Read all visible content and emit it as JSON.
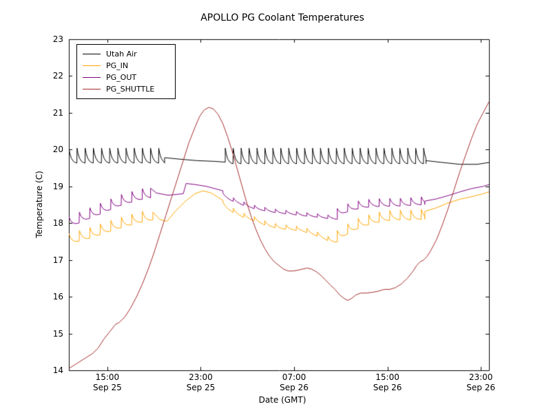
{
  "chart_data": {
    "type": "line",
    "title": "APOLLO PG Coolant Temperatures",
    "xlabel": "Date (GMT)",
    "ylabel": "Temperature (C)",
    "ylim": [
      14,
      23
    ],
    "x_hours_range": [
      0,
      36
    ],
    "grid": false,
    "legend_position": "upper left",
    "background_color": "#ffffff",
    "frame_color": "#000000",
    "yticks": [
      14,
      15,
      16,
      17,
      18,
      19,
      20,
      21,
      22,
      23
    ],
    "xticks": [
      {
        "t": 3.3,
        "time": "15:00",
        "date": "Sep 25"
      },
      {
        "t": 11.3,
        "time": "23:00",
        "date": "Sep 25"
      },
      {
        "t": 19.3,
        "time": "07:00",
        "date": "Sep 26"
      },
      {
        "t": 27.3,
        "time": "15:00",
        "date": "Sep 26"
      },
      {
        "t": 35.3,
        "time": "23:00",
        "date": "Sep 26"
      }
    ],
    "series": [
      {
        "name": "Utah Air",
        "color": "#000000",
        "segments": [
          {
            "kind": "saw",
            "amp": 0.42,
            "period": 0.7,
            "points": [
              [
                0,
                19.62
              ],
              [
                8.2,
                19.62
              ]
            ]
          },
          {
            "kind": "smooth",
            "points": [
              [
                8.2,
                19.78
              ],
              [
                9.5,
                19.74
              ],
              [
                11,
                19.7
              ],
              [
                12.5,
                19.68
              ],
              [
                13.4,
                19.66
              ]
            ]
          },
          {
            "kind": "saw",
            "amp": 0.44,
            "period": 0.68,
            "points": [
              [
                13.4,
                19.6
              ],
              [
                30.6,
                19.6
              ]
            ]
          },
          {
            "kind": "smooth",
            "points": [
              [
                30.6,
                19.7
              ],
              [
                32,
                19.65
              ],
              [
                33.5,
                19.6
              ],
              [
                35,
                19.6
              ],
              [
                36,
                19.65
              ]
            ]
          }
        ]
      },
      {
        "name": "PG_IN",
        "color": "#ffa500",
        "segments": [
          {
            "kind": "saw",
            "amp": 0.3,
            "period": 0.9,
            "points": [
              [
                0,
                17.42
              ],
              [
                2,
                17.6
              ],
              [
                4,
                17.82
              ],
              [
                6,
                18.0
              ],
              [
                7.2,
                18.08
              ]
            ]
          },
          {
            "kind": "smooth",
            "points": [
              [
                7.2,
                18.3
              ],
              [
                7.8,
                18.1
              ],
              [
                8.4,
                18.05
              ],
              [
                9.2,
                18.35
              ],
              [
                10,
                18.6
              ],
              [
                10.8,
                18.8
              ],
              [
                11.5,
                18.88
              ],
              [
                12.2,
                18.82
              ],
              [
                13.2,
                18.62
              ]
            ]
          },
          {
            "kind": "saw",
            "amp": 0.12,
            "period": 0.9,
            "points": [
              [
                13.2,
                18.45
              ],
              [
                14,
                18.3
              ],
              [
                15,
                18.15
              ],
              [
                16,
                18.05
              ],
              [
                17,
                17.92
              ],
              [
                18,
                17.85
              ],
              [
                19,
                17.82
              ],
              [
                20,
                17.78
              ],
              [
                21,
                17.68
              ],
              [
                21.8,
                17.58
              ],
              [
                22.5,
                17.48
              ],
              [
                23,
                17.48
              ]
            ]
          },
          {
            "kind": "saw",
            "amp": 0.28,
            "period": 0.9,
            "points": [
              [
                23,
                17.52
              ],
              [
                24,
                17.72
              ],
              [
                25,
                17.88
              ],
              [
                26,
                17.98
              ],
              [
                27,
                18.05
              ],
              [
                28,
                18.08
              ],
              [
                29.5,
                18.08
              ],
              [
                30.5,
                18.1
              ]
            ]
          },
          {
            "kind": "smooth",
            "points": [
              [
                30.5,
                18.32
              ],
              [
                31.5,
                18.42
              ],
              [
                32.5,
                18.55
              ],
              [
                33.5,
                18.65
              ],
              [
                34.5,
                18.72
              ],
              [
                35.5,
                18.8
              ],
              [
                36,
                18.85
              ]
            ]
          }
        ]
      },
      {
        "name": "PG_OUT",
        "color": "#800080",
        "segments": [
          {
            "kind": "saw",
            "amp": 0.3,
            "period": 0.9,
            "points": [
              [
                0,
                17.88
              ],
              [
                1.5,
                18.08
              ],
              [
                3,
                18.28
              ],
              [
                4.5,
                18.48
              ],
              [
                6,
                18.62
              ],
              [
                7,
                18.68
              ]
            ]
          },
          {
            "kind": "smooth",
            "points": [
              [
                7,
                18.95
              ],
              [
                7.5,
                18.82
              ],
              [
                8.5,
                18.76
              ],
              [
                9.8,
                18.8
              ],
              [
                10.05,
                19.08
              ],
              [
                10.8,
                19.05
              ],
              [
                11.8,
                19.0
              ],
              [
                13.2,
                18.88
              ]
            ]
          },
          {
            "kind": "saw",
            "amp": 0.1,
            "period": 0.9,
            "points": [
              [
                13.2,
                18.72
              ],
              [
                14,
                18.6
              ],
              [
                15,
                18.48
              ],
              [
                16,
                18.38
              ],
              [
                17,
                18.32
              ],
              [
                18,
                18.27
              ],
              [
                19,
                18.24
              ],
              [
                20,
                18.2
              ],
              [
                21,
                18.17
              ],
              [
                22,
                18.13
              ],
              [
                23,
                18.1
              ]
            ]
          },
          {
            "kind": "saw",
            "amp": 0.22,
            "period": 0.9,
            "points": [
              [
                23,
                18.18
              ],
              [
                24,
                18.32
              ],
              [
                25,
                18.4
              ],
              [
                26,
                18.44
              ],
              [
                27,
                18.45
              ],
              [
                28.5,
                18.46
              ],
              [
                30.5,
                18.5
              ]
            ]
          },
          {
            "kind": "smooth",
            "points": [
              [
                30.5,
                18.6
              ],
              [
                31.5,
                18.66
              ],
              [
                32.5,
                18.75
              ],
              [
                33.5,
                18.85
              ],
              [
                34.5,
                18.94
              ],
              [
                35.5,
                19.0
              ],
              [
                36,
                19.05
              ]
            ]
          }
        ]
      },
      {
        "name": "PG_SHUTTLE",
        "color": "#a52a2a",
        "segments": [
          {
            "kind": "smooth",
            "points": [
              [
                0,
                14.05
              ],
              [
                0.5,
                14.15
              ],
              [
                1,
                14.25
              ],
              [
                1.5,
                14.35
              ],
              [
                2,
                14.45
              ],
              [
                2.5,
                14.6
              ],
              [
                3,
                14.85
              ],
              [
                3.5,
                15.05
              ],
              [
                4,
                15.25
              ],
              [
                4.3,
                15.3
              ],
              [
                4.8,
                15.45
              ],
              [
                5.3,
                15.7
              ],
              [
                5.8,
                16.0
              ],
              [
                6.3,
                16.35
              ],
              [
                6.8,
                16.75
              ],
              [
                7.3,
                17.2
              ],
              [
                7.8,
                17.7
              ],
              [
                8.3,
                18.2
              ],
              [
                8.8,
                18.7
              ],
              [
                9.3,
                19.2
              ],
              [
                9.8,
                19.7
              ],
              [
                10.3,
                20.2
              ],
              [
                10.8,
                20.6
              ],
              [
                11.2,
                20.9
              ],
              [
                11.6,
                21.08
              ],
              [
                12,
                21.15
              ],
              [
                12.4,
                21.1
              ],
              [
                12.8,
                20.95
              ],
              [
                13.2,
                20.7
              ],
              [
                13.6,
                20.35
              ],
              [
                14,
                19.95
              ],
              [
                14.4,
                19.5
              ],
              [
                14.8,
                19.05
              ],
              [
                15.2,
                18.6
              ],
              [
                15.6,
                18.2
              ],
              [
                16,
                17.85
              ],
              [
                16.4,
                17.55
              ],
              [
                16.8,
                17.3
              ],
              [
                17.2,
                17.1
              ],
              [
                17.6,
                16.95
              ],
              [
                18,
                16.85
              ],
              [
                18.4,
                16.75
              ],
              [
                18.8,
                16.7
              ],
              [
                19.2,
                16.7
              ],
              [
                19.6,
                16.72
              ],
              [
                20,
                16.75
              ],
              [
                20.4,
                16.78
              ],
              [
                20.8,
                16.75
              ],
              [
                21.2,
                16.68
              ],
              [
                21.6,
                16.58
              ],
              [
                22,
                16.45
              ],
              [
                22.4,
                16.32
              ],
              [
                22.8,
                16.2
              ],
              [
                23.2,
                16.05
              ],
              [
                23.6,
                15.95
              ],
              [
                23.9,
                15.9
              ],
              [
                24.2,
                15.95
              ],
              [
                24.6,
                16.05
              ],
              [
                25,
                16.1
              ],
              [
                25.5,
                16.1
              ],
              [
                26,
                16.12
              ],
              [
                26.5,
                16.15
              ],
              [
                27,
                16.2
              ],
              [
                27.5,
                16.2
              ],
              [
                28,
                16.25
              ],
              [
                28.5,
                16.35
              ],
              [
                29,
                16.5
              ],
              [
                29.5,
                16.7
              ],
              [
                29.8,
                16.85
              ],
              [
                30.1,
                16.95
              ],
              [
                30.4,
                17.0
              ],
              [
                30.7,
                17.1
              ],
              [
                31,
                17.25
              ],
              [
                31.5,
                17.55
              ],
              [
                32,
                17.95
              ],
              [
                32.5,
                18.4
              ],
              [
                33,
                18.9
              ],
              [
                33.5,
                19.4
              ],
              [
                34,
                19.85
              ],
              [
                34.5,
                20.3
              ],
              [
                35,
                20.7
              ],
              [
                35.5,
                21.0
              ],
              [
                36,
                21.3
              ]
            ]
          }
        ]
      }
    ]
  }
}
